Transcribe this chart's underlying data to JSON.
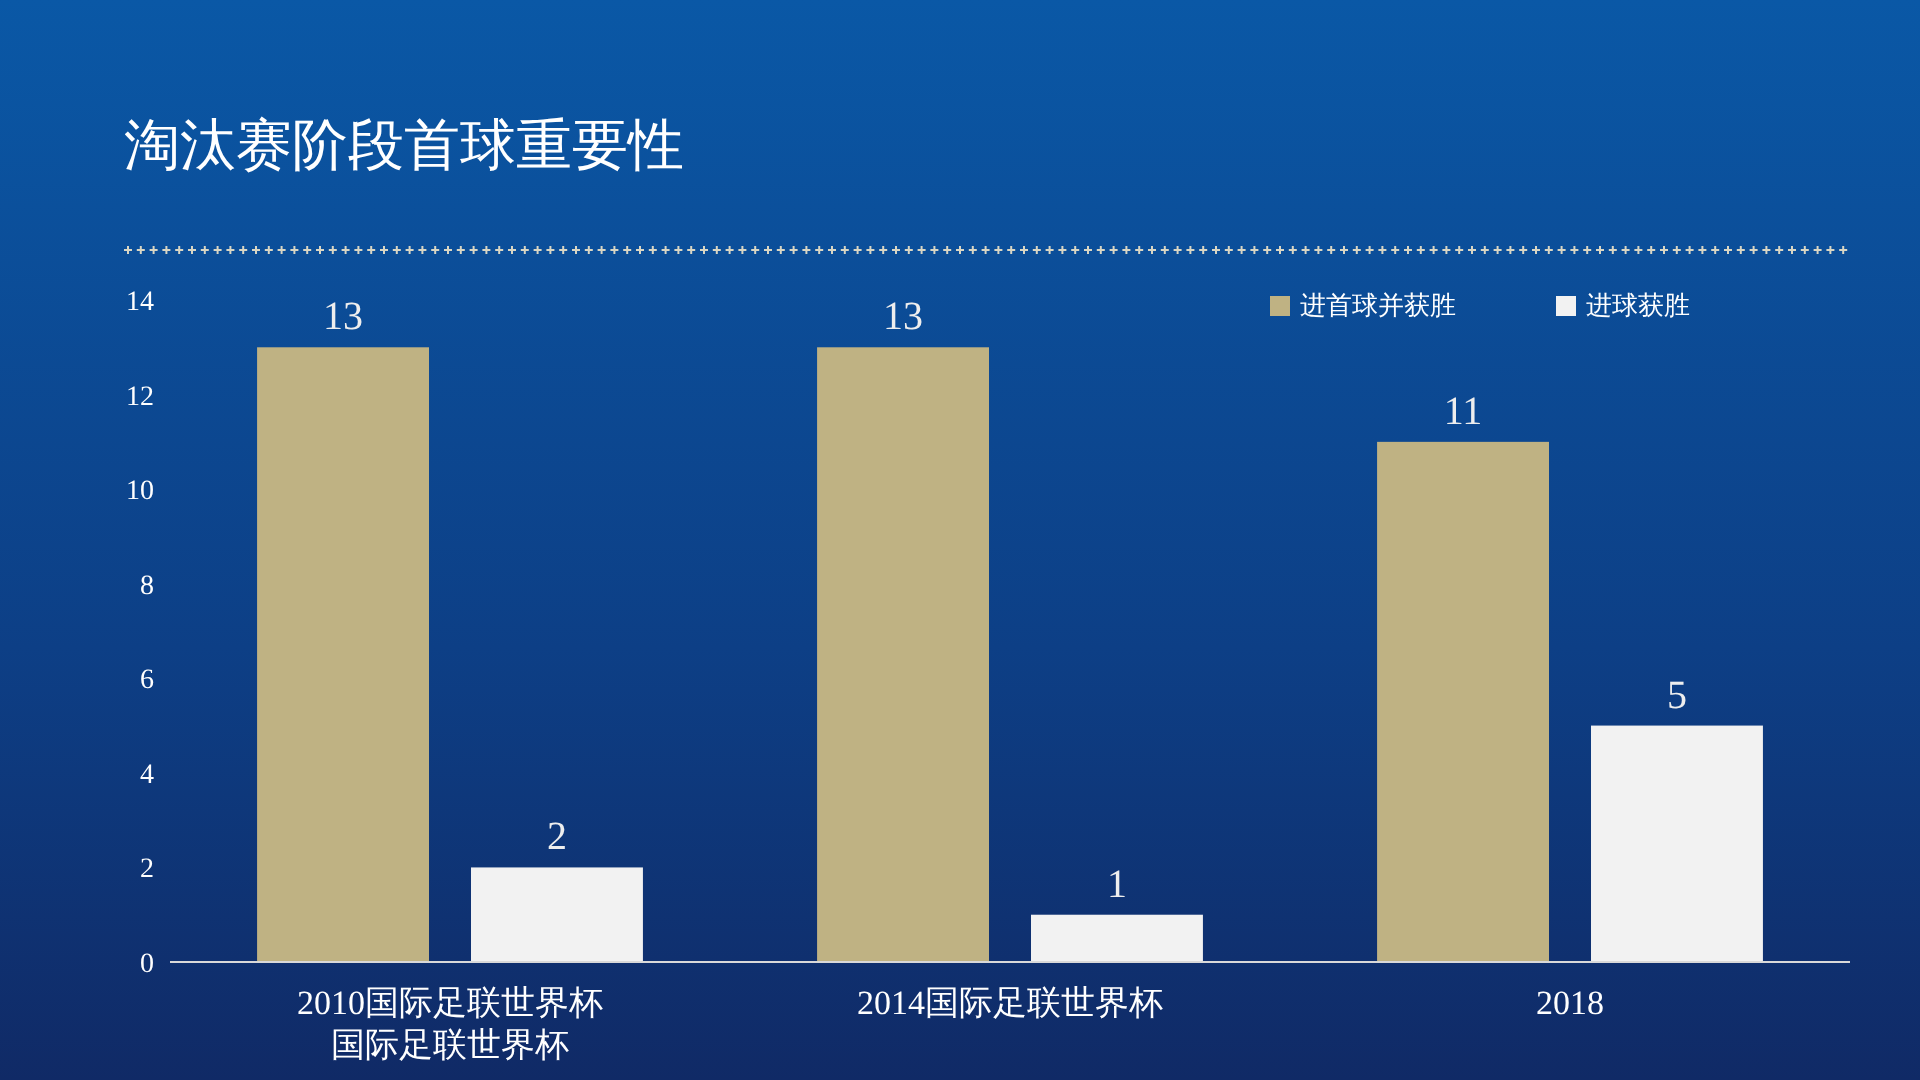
{
  "chart_data": {
    "type": "bar",
    "title": "淘汰赛阶段首球重要性",
    "categories": [
      "2010国际足联世界杯国际足联世界杯",
      "2014国际足联世界杯",
      "2018"
    ],
    "series": [
      {
        "name": "进首球并获胜",
        "color": "#bfb283",
        "values": [
          13,
          13,
          11
        ]
      },
      {
        "name": "进球获胜",
        "color": "#f2f2f2",
        "values": [
          2,
          1,
          5
        ]
      }
    ],
    "ylim": [
      0,
      14
    ],
    "yticks": [
      0,
      2,
      4,
      6,
      8,
      10,
      12,
      14
    ],
    "grid": false,
    "legend": "top right",
    "data_labels": true
  }
}
